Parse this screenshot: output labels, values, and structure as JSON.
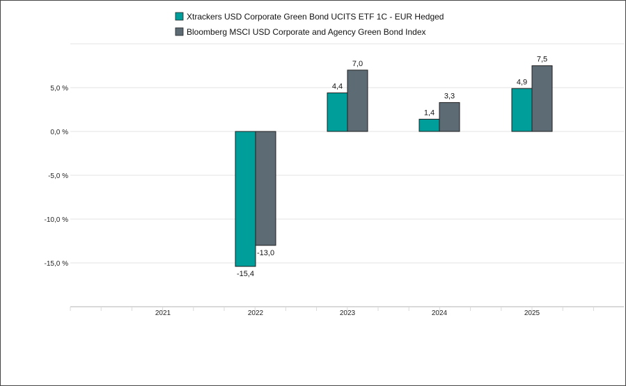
{
  "chart_data": {
    "type": "bar",
    "categories": [
      "2021",
      "2022",
      "2023",
      "2024",
      "2025"
    ],
    "series": [
      {
        "name": "Xtrackers USD Corporate Green Bond UCITS ETF 1C - EUR Hedged",
        "color": "#009e9a",
        "values": [
          null,
          -15.4,
          4.4,
          1.4,
          4.9
        ],
        "labels": [
          "",
          "-15,4",
          "4,4",
          "1,4",
          "4,9"
        ]
      },
      {
        "name": "Bloomberg MSCI USD Corporate and Agency Green Bond Index",
        "color": "#5d6b75",
        "values": [
          null,
          -13.0,
          7.0,
          3.3,
          7.5
        ],
        "labels": [
          "",
          "-13,0",
          "7,0",
          "3,3",
          "7,5"
        ]
      }
    ],
    "y_ticks": [
      5,
      0,
      -5,
      -10,
      -15
    ],
    "y_tick_labels": [
      "5,0 %",
      "0,0 %",
      "-5,0 %",
      "-10,0 %",
      "-15,0 %"
    ],
    "ylim": [
      -20,
      10
    ],
    "grid": true,
    "legend_position": "top"
  }
}
